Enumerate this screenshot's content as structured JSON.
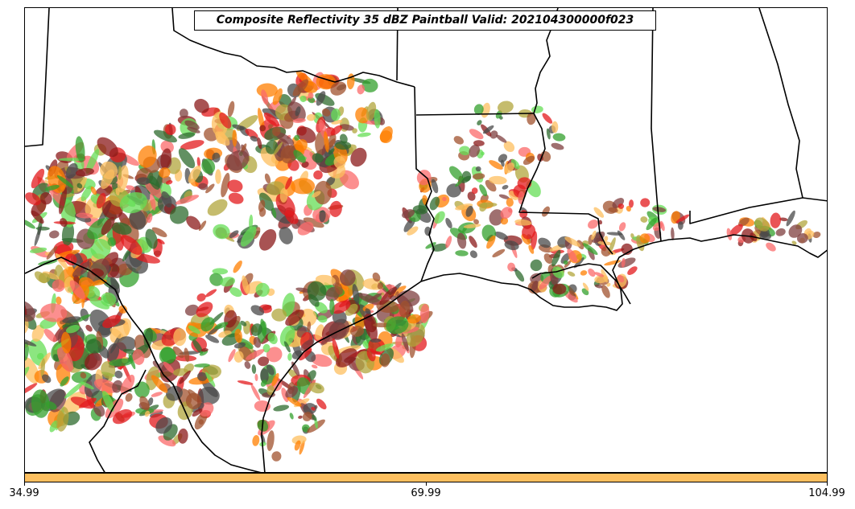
{
  "title": "Composite Reflectivity 35 dBZ Paintball Valid: 202104300000f023",
  "colorbar": {
    "color": "#fdbf5f",
    "ticks": [
      "34.99",
      "69.99",
      "104.99"
    ]
  },
  "map": {
    "region": "South-central United States / Gulf Coast",
    "boundary_color": "#000000",
    "background": "#ffffff"
  },
  "paintball_colors": [
    "#e31a1c",
    "#fb6a6a",
    "#ff7f00",
    "#fdbf5f",
    "#33a02c",
    "#66dd55",
    "#b2a63c",
    "#8b1a1a",
    "#7f3f3f",
    "#4a4a4a",
    "#2e6b2e",
    "#a0522d"
  ]
}
